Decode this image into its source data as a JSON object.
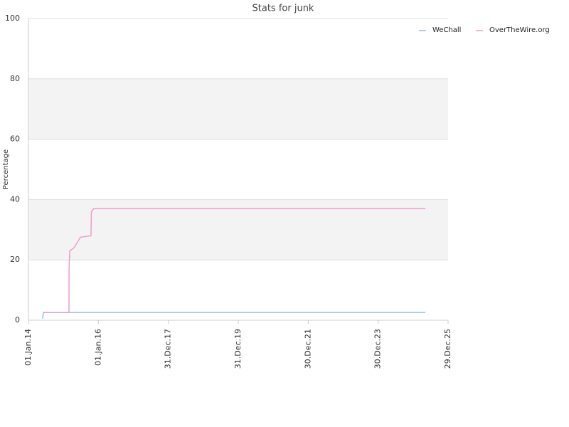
{
  "chart_data": {
    "type": "line",
    "title": "Stats for junk",
    "y_label": "Percentage",
    "xlim": [
      "2014-01-01",
      "2025-12-29"
    ],
    "xticks": [
      {
        "value": "2014-01-01",
        "label": "01.Jan.14"
      },
      {
        "value": "2016-01-01",
        "label": "01.Jan.16"
      },
      {
        "value": "2017-12-31",
        "label": "31.Dec.17"
      },
      {
        "value": "2019-12-31",
        "label": "31.Dec.19"
      },
      {
        "value": "2021-12-30",
        "label": "30.Dec.21"
      },
      {
        "value": "2023-12-30",
        "label": "30.Dec.23"
      },
      {
        "value": "2025-12-29",
        "label": "29.Dec.25"
      }
    ],
    "ylim": [
      0,
      100
    ],
    "yticks": [
      0,
      20,
      40,
      60,
      80,
      100
    ],
    "grid": true,
    "legend": "top-right",
    "series": [
      {
        "name": "WeChall",
        "color": "#8ec0ea",
        "x": [
          "2014-05-29",
          "2014-06-06",
          "2025-05-06"
        ],
        "values": [
          0.5,
          2.6,
          2.6
        ]
      },
      {
        "name": "OverTheWire.org",
        "color": "#ef9dcd",
        "x": [
          "2014-06-06",
          "2015-02-28",
          "2015-03-01",
          "2015-03-08",
          "2015-04-21",
          "2015-06-27",
          "2015-10-16",
          "2015-10-20",
          "2015-11-15",
          "2025-05-06"
        ],
        "values": [
          2.6,
          2.6,
          17,
          23,
          24,
          27.5,
          28,
          36,
          37,
          37
        ]
      }
    ]
  }
}
